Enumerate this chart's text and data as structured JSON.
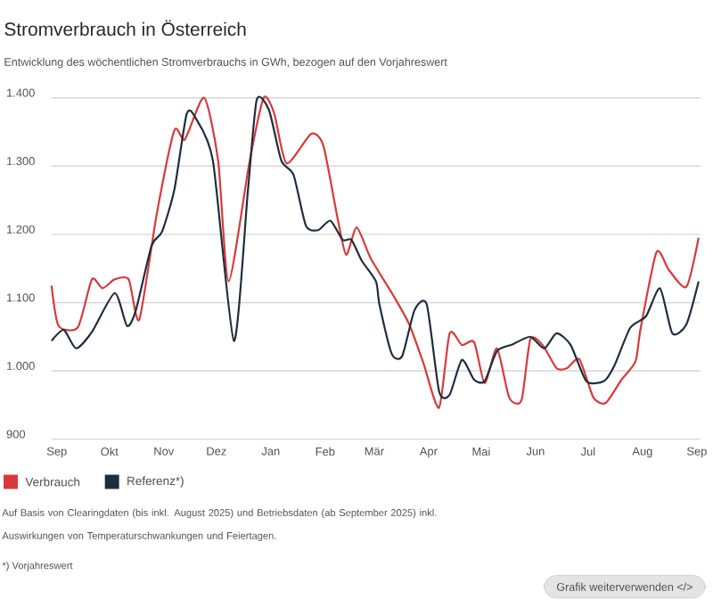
{
  "chart_data": {
    "type": "line",
    "title": "Stromverbrauch in Österreich",
    "subtitle": "Entwicklung des wöchentlichen Stromverbrauchs in GWh, bezogen auf den Vorjahreswert",
    "series": [
      {
        "name": "Verbrauch",
        "color": "#d9383a",
        "x": [
          "2024-08-29",
          "2024-09-02",
          "2024-09-13",
          "2024-09-21",
          "2024-09-27",
          "2024-10-04",
          "2024-10-12",
          "2024-10-18",
          "2024-10-28",
          "2024-11-07",
          "2024-11-13",
          "2024-11-24",
          "2024-12-02",
          "2024-12-08",
          "2024-12-20",
          "2024-12-28",
          "2025-01-03",
          "2025-01-10",
          "2025-01-24",
          "2025-01-31",
          "2025-02-08",
          "2025-02-13",
          "2025-02-19",
          "2025-02-27",
          "2025-03-12",
          "2025-03-21",
          "2025-03-29",
          "2025-04-07",
          "2025-04-13",
          "2025-04-20",
          "2025-04-27",
          "2025-05-03",
          "2025-05-10",
          "2025-05-17",
          "2025-05-24",
          "2025-05-29",
          "2025-06-05",
          "2025-06-13",
          "2025-06-19",
          "2025-06-26",
          "2025-07-04",
          "2025-07-11",
          "2025-07-20",
          "2025-07-28",
          "2025-07-31",
          "2025-08-09",
          "2025-08-16",
          "2025-08-26",
          "2025-09-02"
        ],
        "values": [
          1125,
          1066,
          1064,
          1134,
          1121,
          1134,
          1134,
          1075,
          1230,
          1352,
          1339,
          1400,
          1308,
          1131,
          1308,
          1400,
          1377,
          1304,
          1347,
          1330,
          1225,
          1170,
          1210,
          1165,
          1110,
          1068,
          1012,
          946,
          1055,
          1038,
          1042,
          982,
          1033,
          961,
          957,
          1046,
          1038,
          1004,
          1004,
          1017,
          961,
          953,
          987,
          1014,
          1063,
          1174,
          1148,
          1123,
          1195
        ]
      },
      {
        "name": "Referenz*)",
        "color": "#1e2d3d",
        "x": [
          "2024-08-29",
          "2024-09-05",
          "2024-09-12",
          "2024-09-21",
          "2024-10-04",
          "2024-10-11",
          "2024-10-16",
          "2024-10-25",
          "2024-10-31",
          "2024-11-07",
          "2024-11-14",
          "2024-11-19",
          "2024-11-29",
          "2024-12-11",
          "2024-12-19",
          "2024-12-24",
          "2024-12-31",
          "2025-01-07",
          "2025-01-14",
          "2025-01-21",
          "2025-01-28",
          "2025-02-04",
          "2025-02-11",
          "2025-02-16",
          "2025-02-22",
          "2025-03-02",
          "2025-03-04",
          "2025-03-11",
          "2025-03-17",
          "2025-03-24",
          "2025-03-31",
          "2025-04-07",
          "2025-04-13",
          "2025-04-20",
          "2025-04-27",
          "2025-05-03",
          "2025-05-10",
          "2025-05-19",
          "2025-05-29",
          "2025-06-06",
          "2025-06-13",
          "2025-06-21",
          "2025-06-30",
          "2025-07-10",
          "2025-07-16",
          "2025-07-25",
          "2025-08-03",
          "2025-08-11",
          "2025-08-18",
          "2025-08-26",
          "2025-09-02"
        ],
        "values": [
          1044,
          1060,
          1033,
          1057,
          1114,
          1066,
          1088,
          1183,
          1204,
          1265,
          1376,
          1371,
          1308,
          1044,
          1265,
          1397,
          1382,
          1308,
          1287,
          1213,
          1206,
          1220,
          1192,
          1192,
          1161,
          1131,
          1097,
          1025,
          1022,
          1089,
          1097,
          970,
          965,
          1016,
          987,
          985,
          1029,
          1039,
          1050,
          1033,
          1055,
          1038,
          985,
          985,
          1008,
          1063,
          1080,
          1121,
          1055,
          1068,
          1131
        ]
      }
    ],
    "xlim": [
      "2024-08-29",
      "2025-09-03"
    ],
    "xticks": [
      {
        "value": "2024-09-01",
        "label": "Sep"
      },
      {
        "value": "2024-10-01",
        "label": "Okt"
      },
      {
        "value": "2024-11-01",
        "label": "Nov"
      },
      {
        "value": "2024-12-01",
        "label": "Dez"
      },
      {
        "value": "2025-01-01",
        "label": "Jan"
      },
      {
        "value": "2025-02-01",
        "label": "Feb"
      },
      {
        "value": "2025-03-01",
        "label": "Mär"
      },
      {
        "value": "2025-04-01",
        "label": "Apr"
      },
      {
        "value": "2025-05-01",
        "label": "Mai"
      },
      {
        "value": "2025-06-01",
        "label": "Jun"
      },
      {
        "value": "2025-07-01",
        "label": "Jul"
      },
      {
        "value": "2025-08-01",
        "label": "Aug"
      },
      {
        "value": "2025-09-01",
        "label": "Sep"
      }
    ],
    "ylim": [
      900,
      1400
    ],
    "yticks": [
      {
        "value": 900,
        "label": "900"
      },
      {
        "value": 1000,
        "label": "1.000"
      },
      {
        "value": 1100,
        "label": "1.100"
      },
      {
        "value": 1200,
        "label": "1.200"
      },
      {
        "value": 1300,
        "label": "1.300"
      },
      {
        "value": 1400,
        "label": "1.400"
      }
    ],
    "grid": "y",
    "legend": "bottom left",
    "marker": "none",
    "line_style": "solid",
    "annotations": [
      "Auf Basis von Clearingdaten (bis inkl. August 2025) und Betriebsdaten (ab September 2025) inkl. Auswirkungen von Temperaturschwankungen und Feiertagen.",
      "*) Vorjahreswert",
      "Grafik weiterverwenden </>"
    ]
  }
}
